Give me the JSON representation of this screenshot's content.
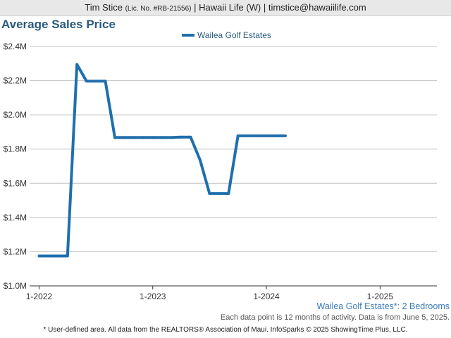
{
  "header": {
    "agent_name": "Tim Stice",
    "license": "(Lic. No. #RB-21556)",
    "rest": " | Hawaii Life (W) | timstice@hawaiilife.com"
  },
  "colors": {
    "series": "#1f6fad",
    "title": "#2a5a7e",
    "grid": "#c0c0c0",
    "area_note": "#3a7ab8"
  },
  "chart_data": {
    "type": "line",
    "title": "Average Sales Price",
    "legend_position": "top-center",
    "grid": true,
    "ylim": [
      1000000,
      2400000
    ],
    "y_ticks": [
      {
        "value": 1000000,
        "label": "$1.0M"
      },
      {
        "value": 1200000,
        "label": "$1.2M"
      },
      {
        "value": 1400000,
        "label": "$1.4M"
      },
      {
        "value": 1600000,
        "label": "$1.6M"
      },
      {
        "value": 1800000,
        "label": "$1.8M"
      },
      {
        "value": 2000000,
        "label": "$2.0M"
      },
      {
        "value": 2200000,
        "label": "$2.2M"
      },
      {
        "value": 2400000,
        "label": "$2.4M"
      }
    ],
    "xlim": [
      "2021-12",
      "2025-07"
    ],
    "x_ticks": [
      {
        "value": "2022-01",
        "label": "1-2022"
      },
      {
        "value": "2023-01",
        "label": "1-2023"
      },
      {
        "value": "2024-01",
        "label": "1-2024"
      },
      {
        "value": "2025-01",
        "label": "1-2025"
      }
    ],
    "series": [
      {
        "name": "Wailea Golf Estates",
        "points": [
          {
            "x": "2022-01",
            "y": 1175000
          },
          {
            "x": "2022-02",
            "y": 1175000
          },
          {
            "x": "2022-03",
            "y": 1175000
          },
          {
            "x": "2022-04",
            "y": 1175000
          },
          {
            "x": "2022-05",
            "y": 2295000
          },
          {
            "x": "2022-06",
            "y": 2197500
          },
          {
            "x": "2022-07",
            "y": 2197500
          },
          {
            "x": "2022-08",
            "y": 2197500
          },
          {
            "x": "2022-09",
            "y": 1867500
          },
          {
            "x": "2022-10",
            "y": 1867500
          },
          {
            "x": "2022-11",
            "y": 1867500
          },
          {
            "x": "2022-12",
            "y": 1867500
          },
          {
            "x": "2023-01",
            "y": 1867500
          },
          {
            "x": "2023-02",
            "y": 1867500
          },
          {
            "x": "2023-03",
            "y": 1867500
          },
          {
            "x": "2023-04",
            "y": 1870000
          },
          {
            "x": "2023-05",
            "y": 1870000
          },
          {
            "x": "2023-06",
            "y": 1735000
          },
          {
            "x": "2023-07",
            "y": 1540000
          },
          {
            "x": "2023-08",
            "y": 1540000
          },
          {
            "x": "2023-09",
            "y": 1540000
          },
          {
            "x": "2023-10",
            "y": 1877500
          },
          {
            "x": "2023-11",
            "y": 1877500
          },
          {
            "x": "2023-12",
            "y": 1877500
          },
          {
            "x": "2024-01",
            "y": 1877500
          },
          {
            "x": "2024-02",
            "y": 1877500
          },
          {
            "x": "2024-03",
            "y": 1877500
          }
        ]
      }
    ]
  },
  "footer": {
    "area_note": "Wailea Golf Estates*: 2 Bedrooms",
    "data_note": "Each data point is 12 months of activity. Data is from June 5, 2025.",
    "disclaimer": "* User-defined area. All data from the REALTORS® Association of Maui. InfoSparks © 2025 ShowingTime Plus, LLC."
  }
}
